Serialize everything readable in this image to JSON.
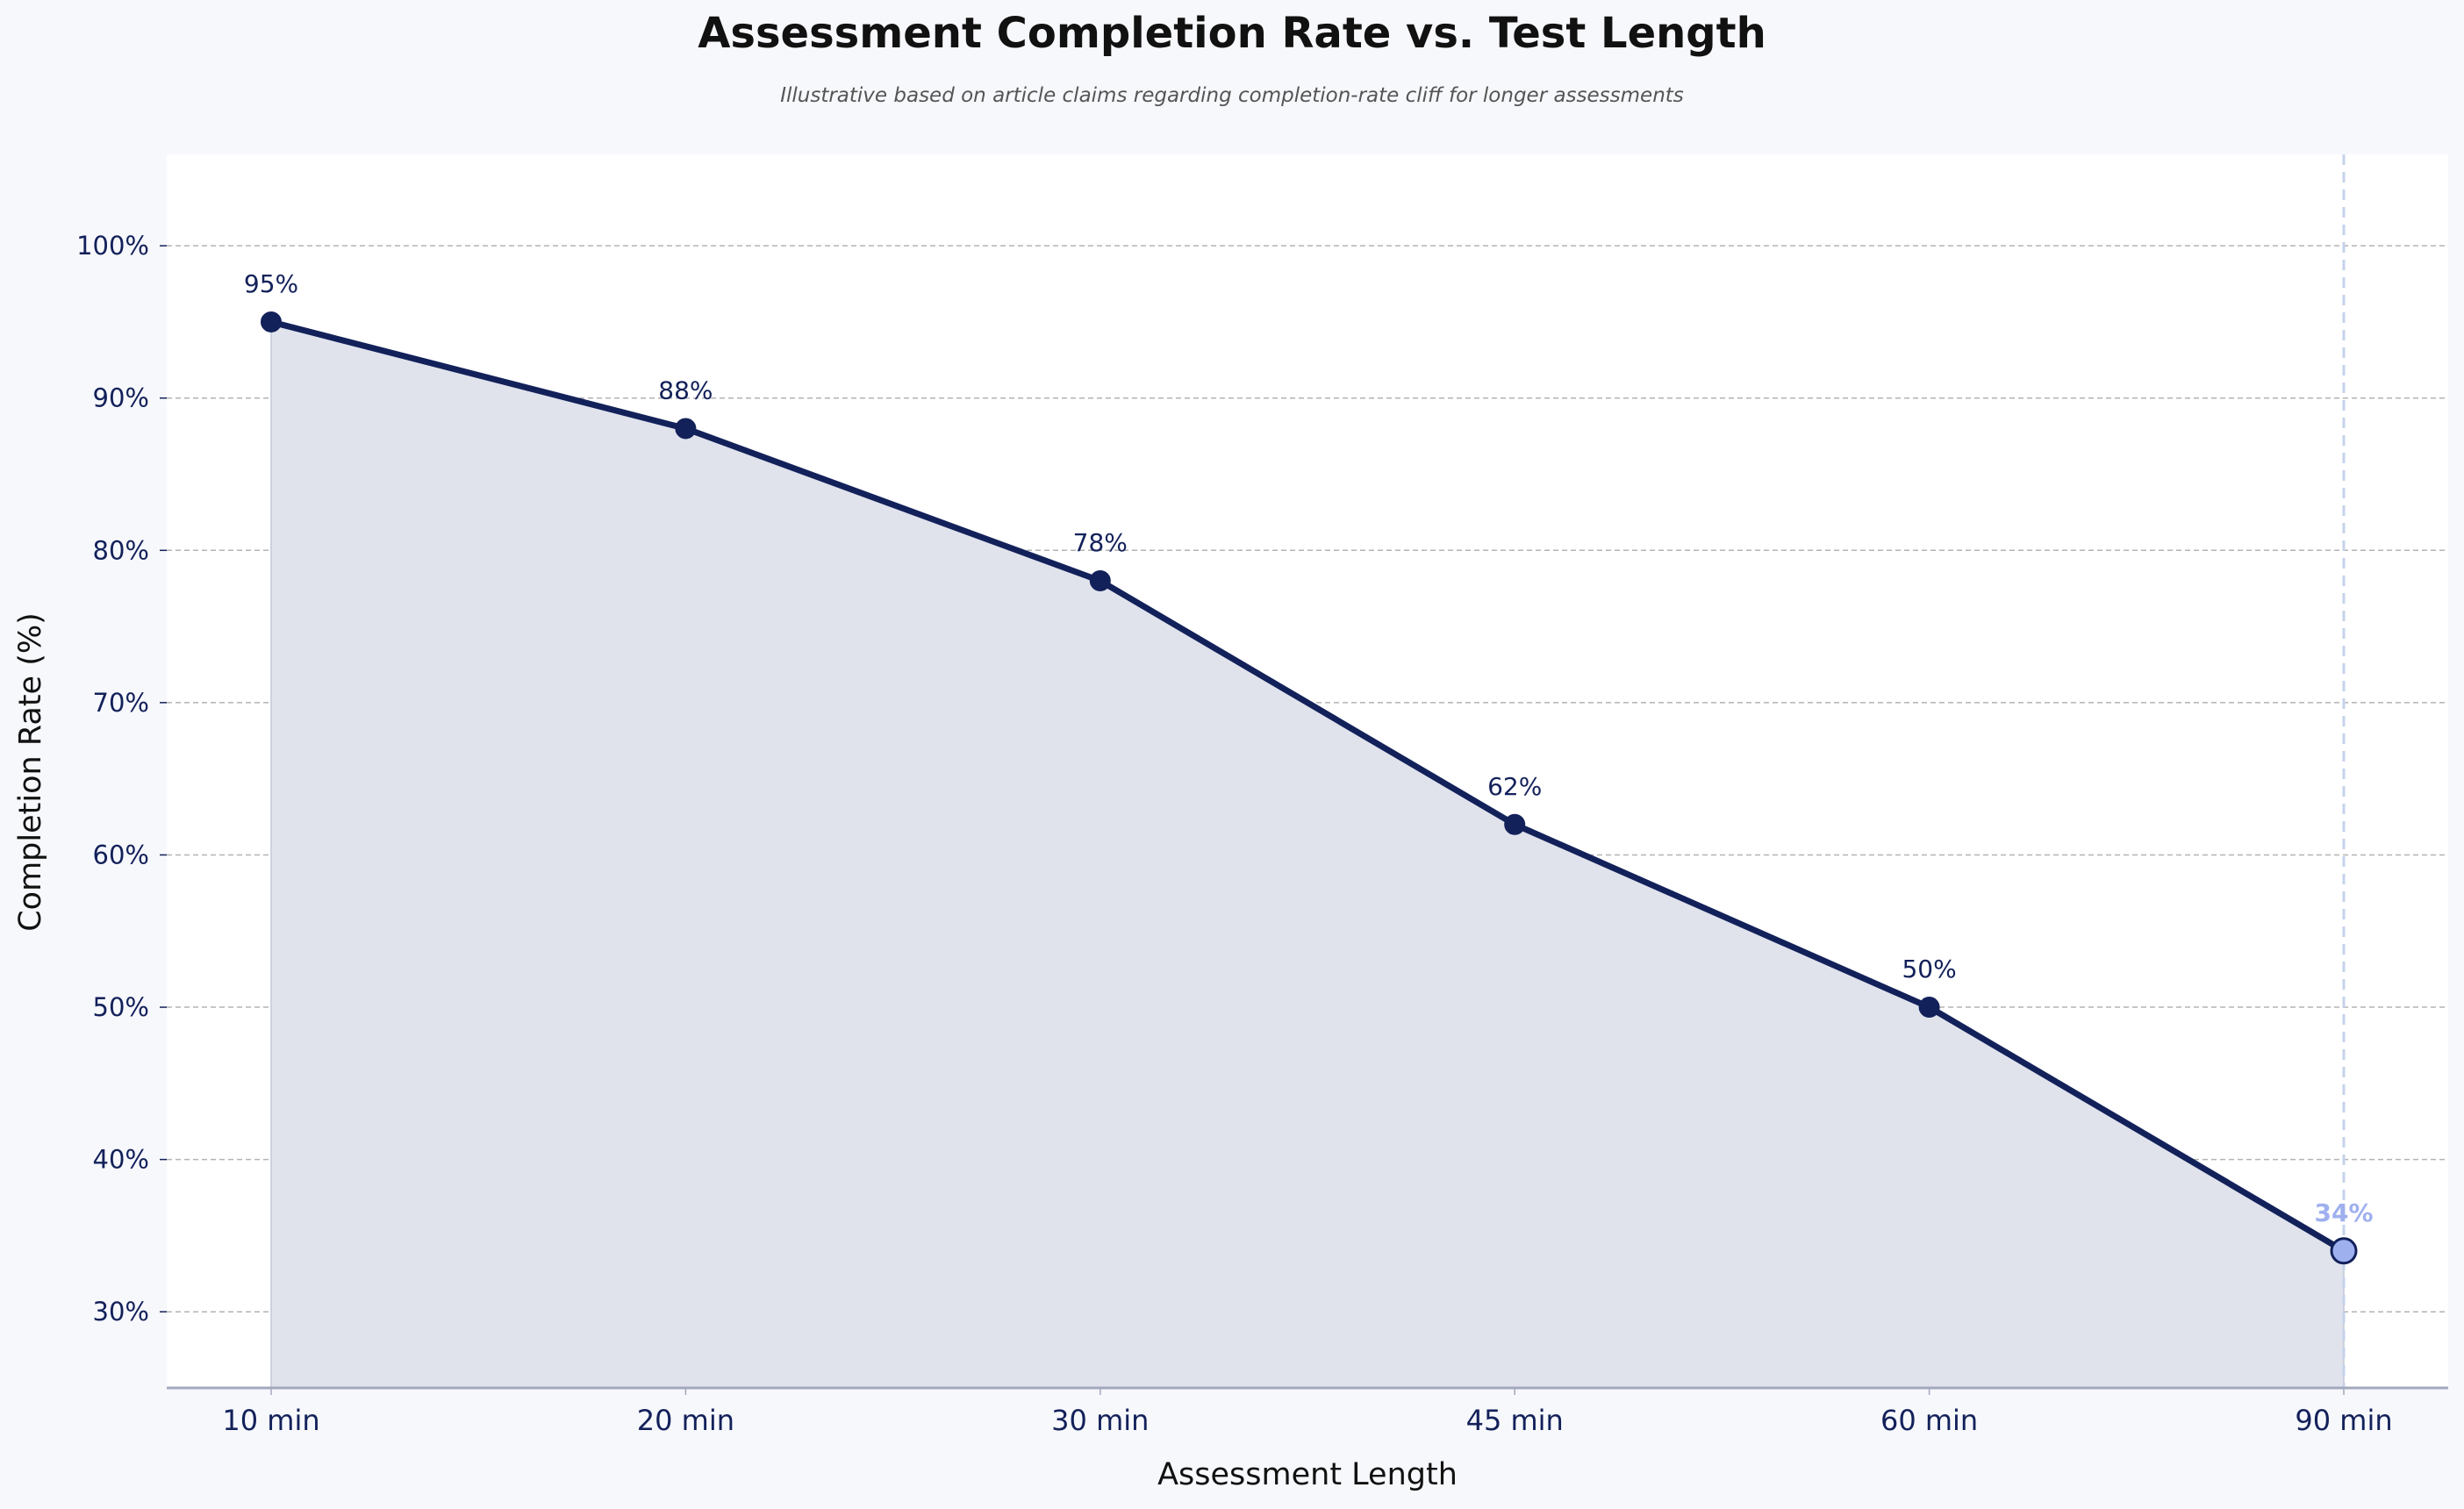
{
  "chart_data": {
    "type": "line",
    "title": "Assessment Completion Rate vs. Test Length",
    "subtitle": "Illustrative based on article claims regarding completion-rate cliff for longer assessments",
    "xlabel": "Assessment Length",
    "ylabel": "Completion Rate (%)",
    "categories": [
      "10 min",
      "20 min",
      "30 min",
      "45 min",
      "60 min",
      "90 min"
    ],
    "series": [
      {
        "values": [
          95,
          88,
          78,
          62,
          50,
          34
        ]
      }
    ],
    "data_labels": [
      "95%",
      "88%",
      "78%",
      "62%",
      "50%",
      "34%"
    ],
    "ylim": [
      25,
      106
    ],
    "yticks": [
      30,
      40,
      50,
      60,
      70,
      80,
      90,
      100
    ],
    "ytick_labels": [
      "30%",
      "40%",
      "50%",
      "60%",
      "70%",
      "80%",
      "90%",
      "100%"
    ],
    "grid": "horizontal dashed",
    "area_fill": true,
    "highlight_index": 5,
    "colors": {
      "line": "#13215a",
      "fill": "#e0e3ec",
      "highlight": "#9fb0ef",
      "highlight_line": "#c5d2ea",
      "grid": "#b3b3b3",
      "axis": "#a3a8bd",
      "text": "#13215a",
      "background": "#f7f8fc",
      "plot_background": "#ffffff"
    }
  }
}
